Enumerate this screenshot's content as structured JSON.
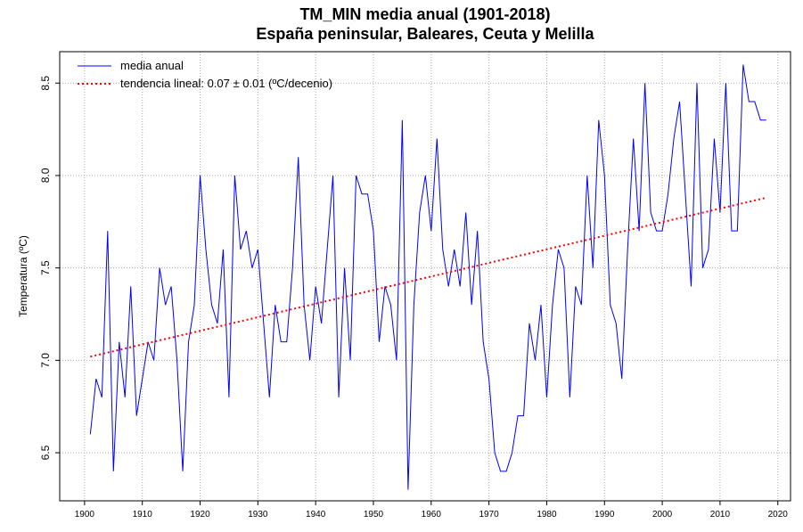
{
  "chart_data": {
    "type": "line",
    "title": "TM_MIN media anual (1901-2018)",
    "subtitle": "España peninsular, Baleares, Ceuta y Melilla",
    "y_label": "Temperatura (ºC)",
    "x": [
      1901,
      1902,
      1903,
      1904,
      1905,
      1906,
      1907,
      1908,
      1909,
      1910,
      1911,
      1912,
      1913,
      1914,
      1915,
      1916,
      1917,
      1918,
      1919,
      1920,
      1921,
      1922,
      1923,
      1924,
      1925,
      1926,
      1927,
      1928,
      1929,
      1930,
      1931,
      1932,
      1933,
      1934,
      1935,
      1936,
      1937,
      1938,
      1939,
      1940,
      1941,
      1942,
      1943,
      1944,
      1945,
      1946,
      1947,
      1948,
      1949,
      1950,
      1951,
      1952,
      1953,
      1954,
      1955,
      1956,
      1957,
      1958,
      1959,
      1960,
      1961,
      1962,
      1963,
      1964,
      1965,
      1966,
      1967,
      1968,
      1969,
      1970,
      1971,
      1972,
      1973,
      1974,
      1975,
      1976,
      1977,
      1978,
      1979,
      1980,
      1981,
      1982,
      1983,
      1984,
      1985,
      1986,
      1987,
      1988,
      1989,
      1990,
      1991,
      1992,
      1993,
      1994,
      1995,
      1996,
      1997,
      1998,
      1999,
      2000,
      2001,
      2002,
      2003,
      2004,
      2005,
      2006,
      2007,
      2008,
      2009,
      2010,
      2011,
      2012,
      2013,
      2014,
      2015,
      2016,
      2017,
      2018
    ],
    "series": [
      {
        "name": "media anual",
        "color": "#0000ff",
        "style": "solid",
        "values": [
          6.6,
          6.9,
          6.8,
          7.7,
          6.4,
          7.1,
          6.8,
          7.4,
          6.7,
          6.9,
          7.1,
          7.0,
          7.5,
          7.3,
          7.4,
          7.0,
          6.4,
          7.1,
          7.3,
          8.0,
          7.6,
          7.3,
          7.2,
          7.6,
          6.8,
          8.0,
          7.6,
          7.7,
          7.5,
          7.6,
          7.2,
          6.8,
          7.3,
          7.1,
          7.1,
          7.5,
          8.1,
          7.3,
          7.0,
          7.4,
          7.2,
          7.6,
          8.0,
          6.8,
          7.5,
          7.0,
          8.0,
          7.9,
          7.9,
          7.7,
          7.1,
          7.4,
          7.3,
          7.0,
          8.3,
          6.3,
          7.3,
          7.8,
          8.0,
          7.7,
          8.2,
          7.6,
          7.4,
          7.6,
          7.4,
          7.8,
          7.3,
          7.7,
          7.1,
          6.9,
          6.5,
          6.4,
          6.4,
          6.5,
          6.7,
          6.7,
          7.2,
          7.0,
          7.3,
          6.8,
          7.3,
          7.6,
          7.5,
          6.8,
          7.4,
          7.3,
          8.0,
          7.5,
          8.3,
          8.0,
          7.3,
          7.2,
          6.9,
          7.6,
          8.2,
          7.7,
          8.5,
          7.8,
          7.7,
          7.7,
          7.9,
          8.2,
          8.4,
          7.9,
          7.4,
          8.5,
          7.5,
          7.6,
          8.2,
          7.8,
          8.5,
          7.7,
          7.7,
          8.6,
          8.4,
          8.4,
          8.3,
          8.3
        ]
      },
      {
        "name": "tendencia lineal: 0.07 ± 0.01 (ºC/decenio)",
        "color": "#ff0000",
        "style": "dotted",
        "x": [
          1901,
          2018
        ],
        "values": [
          7.02,
          7.88
        ]
      }
    ],
    "xlim": [
      1895.7,
      2022.2
    ],
    "xticks": [
      1900,
      1910,
      1920,
      1930,
      1940,
      1950,
      1960,
      1970,
      1980,
      1990,
      2000,
      2010,
      2020
    ],
    "ylim": [
      6.24,
      8.67
    ],
    "yticks": [
      6.5,
      {
        "value": 7,
        "label": "7.0"
      },
      7.5,
      {
        "value": 8,
        "label": "8.0"
      },
      8.5
    ],
    "grid": true,
    "legend": "top-left"
  }
}
